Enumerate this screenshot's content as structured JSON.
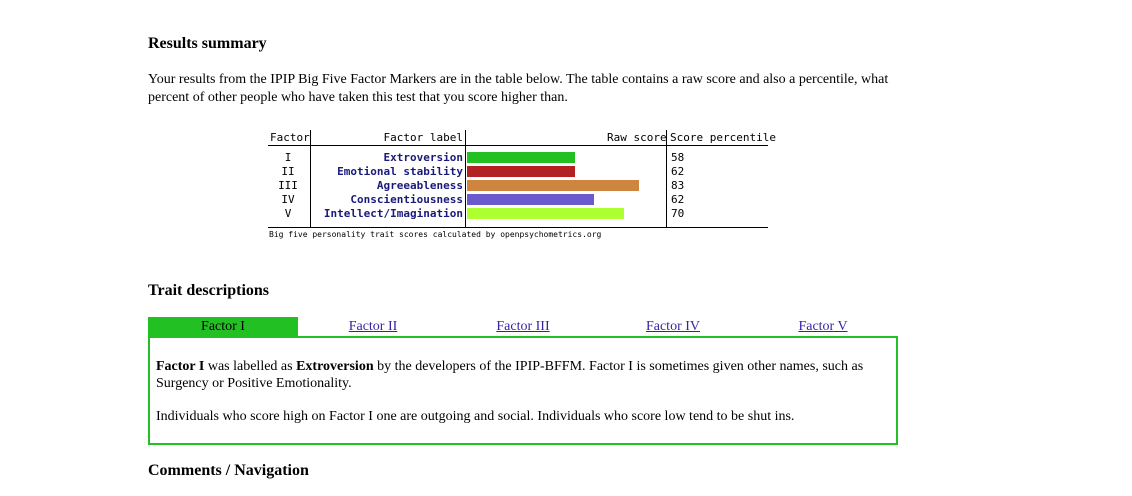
{
  "results": {
    "heading": "Results summary",
    "intro": "Your results from the IPIP Big Five Factor Markers are in the table below. The table contains a raw score and also a percentile, what percent of other people who have taken this test that you score higher than."
  },
  "chart_data": {
    "type": "bar",
    "headers": {
      "factor": "Factor",
      "label": "Factor label",
      "raw": "Raw score",
      "percentile": "Score percentile"
    },
    "categories": [
      "I",
      "II",
      "III",
      "IV",
      "V"
    ],
    "labels": [
      "Extroversion",
      "Emotional stability",
      "Agreeableness",
      "Conscientiousness",
      "Intellect/Imagination"
    ],
    "raw_values": [
      0.55,
      0.55,
      0.88,
      0.65,
      0.8
    ],
    "percentiles": [
      "58",
      "62",
      "83",
      "62",
      "70"
    ],
    "colors": [
      "#22c022",
      "#b22222",
      "#cd853f",
      "#6a5acd",
      "#adff2f"
    ],
    "footnote": "Big five personality trait scores calculated by openpsychometrics.org"
  },
  "traits": {
    "heading": "Trait descriptions",
    "tabs": [
      "Factor I",
      "Factor II",
      "Factor III",
      "Factor IV",
      "Factor V"
    ],
    "active_tab": 0,
    "active_color": "#22c022",
    "para1": {
      "factor": "Factor I",
      "text1": " was labelled as ",
      "name": "Extroversion",
      "text2": " by the developers of the IPIP-BFFM. Factor I is sometimes given other names, such as Surgency or Positive Emotionality."
    },
    "para2": "Individuals who score high on Factor I one are outgoing and social. Individuals who score low tend to be shut ins."
  },
  "comments": {
    "heading": "Comments / Navigation"
  }
}
